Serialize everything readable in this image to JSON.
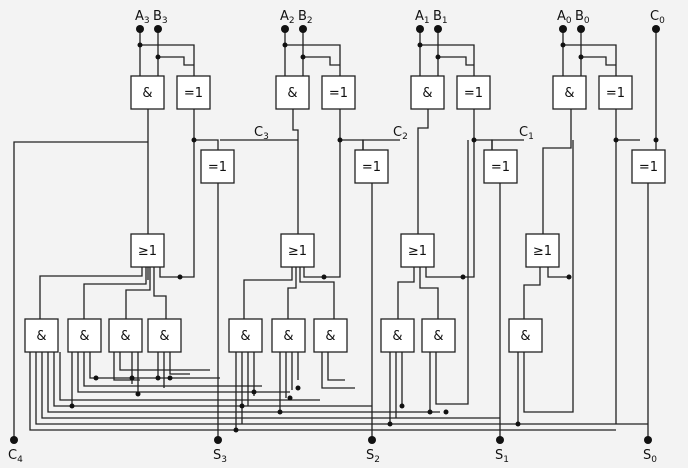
{
  "gate_symbols": {
    "and": "&",
    "xor": "=1",
    "or": "≥1"
  },
  "inputs": {
    "a3": "A",
    "a3_sub": "3",
    "b3": "B",
    "b3_sub": "3",
    "a2": "A",
    "a2_sub": "2",
    "b2": "B",
    "b2_sub": "2",
    "a1": "A",
    "a1_sub": "1",
    "b1": "B",
    "b1_sub": "1",
    "a0": "A",
    "a0_sub": "0",
    "b0": "B",
    "b0_sub": "0",
    "c0": "C",
    "c0_sub": "0"
  },
  "carries": {
    "c3": "C",
    "c3_sub": "3",
    "c2": "C",
    "c2_sub": "2",
    "c1": "C",
    "c1_sub": "1"
  },
  "outputs": {
    "c4": "C",
    "c4_sub": "4",
    "s3": "S",
    "s3_sub": "3",
    "s2": "S",
    "s2_sub": "2",
    "s1": "S",
    "s1_sub": "1",
    "s0": "S",
    "s0_sub": "0"
  }
}
